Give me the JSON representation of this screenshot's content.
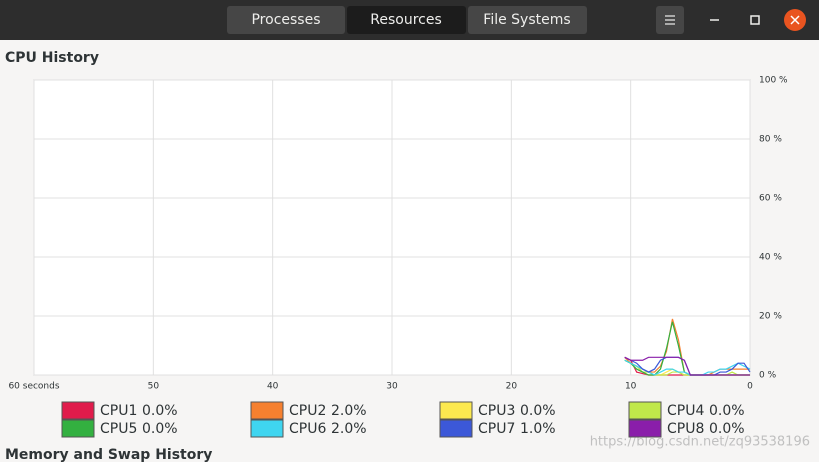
{
  "tabs": [
    "Processes",
    "Resources",
    "File Systems"
  ],
  "chart_data": {
    "type": "line",
    "title": "CPU History",
    "x": [
      10.5,
      10,
      9.5,
      9,
      8.5,
      8,
      7.5,
      7,
      6.5,
      6,
      5.5,
      5,
      4.5,
      4,
      3.5,
      3,
      2.5,
      2,
      1.5,
      1,
      0.5,
      0
    ],
    "xlim": [
      60,
      0
    ],
    "xticks": [
      {
        "value": 60,
        "label": "60 seconds"
      },
      50,
      40,
      30,
      20,
      10,
      0
    ],
    "ylim": [
      0,
      100
    ],
    "yticks": [
      {
        "value": 0,
        "label": "0 %"
      },
      {
        "value": 20,
        "label": "20 %"
      },
      {
        "value": 40,
        "label": "40 %"
      },
      {
        "value": 60,
        "label": "60 %"
      },
      {
        "value": 80,
        "label": "80 %"
      },
      {
        "value": 100,
        "label": "100 %"
      }
    ],
    "grid": true,
    "series": [
      {
        "name": "CPU1",
        "reading": "0.0%",
        "color": "#e01b4b",
        "values": [
          6,
          5,
          1,
          0.5,
          0,
          0,
          0,
          0,
          0,
          0,
          0,
          0,
          0,
          0,
          0,
          0,
          0,
          0,
          0,
          0,
          0,
          0
        ]
      },
      {
        "name": "CPU2",
        "reading": "2.0%",
        "color": "#f6802f",
        "values": [
          6,
          4,
          3,
          2,
          1,
          1,
          3,
          8,
          19,
          12,
          1,
          0,
          0,
          0,
          0,
          1,
          2,
          2,
          2,
          2,
          2,
          2
        ]
      },
      {
        "name": "CPU3",
        "reading": "0.0%",
        "color": "#fce94f",
        "values": [
          5,
          4,
          2,
          1,
          0,
          0,
          0,
          1,
          2,
          1,
          0,
          0,
          0,
          0,
          0,
          0,
          0,
          0,
          0,
          0,
          0,
          0
        ]
      },
      {
        "name": "CPU4",
        "reading": "0.0%",
        "color": "#c0e84a",
        "values": [
          5,
          4,
          3,
          1,
          1,
          0,
          0,
          0,
          1,
          1,
          0,
          0,
          0,
          0,
          0,
          0,
          0,
          0,
          1,
          0,
          0,
          0
        ]
      },
      {
        "name": "CPU5",
        "reading": "0.0%",
        "color": "#33b040",
        "values": [
          5,
          4,
          2,
          1,
          0,
          0,
          2,
          9,
          18,
          10,
          1,
          0,
          0,
          0,
          0,
          0,
          0,
          0,
          0,
          0,
          0,
          0
        ]
      },
      {
        "name": "CPU6",
        "reading": "2.0%",
        "color": "#3fd5f0",
        "values": [
          5,
          4,
          3,
          2,
          1,
          0,
          1,
          2,
          2,
          1,
          1,
          0,
          0,
          0,
          1,
          1,
          2,
          2,
          3,
          4,
          3,
          2
        ]
      },
      {
        "name": "CPU7",
        "reading": "1.0%",
        "color": "#3c58d8",
        "values": [
          6,
          5,
          4,
          2,
          1,
          2,
          5,
          6,
          6,
          6,
          5,
          0,
          0,
          0,
          0,
          0,
          1,
          1,
          2,
          4,
          4,
          1
        ]
      },
      {
        "name": "CPU8",
        "reading": "0.0%",
        "color": "#8a1eaa",
        "values": [
          6,
          5,
          5,
          5,
          6,
          6,
          6,
          6,
          6,
          6,
          5,
          0,
          0,
          0,
          0,
          0,
          0,
          0,
          0,
          0,
          0,
          0
        ]
      }
    ]
  },
  "next_section": "Memory and Swap History",
  "watermark": "https://blog.csdn.net/zq93538196"
}
